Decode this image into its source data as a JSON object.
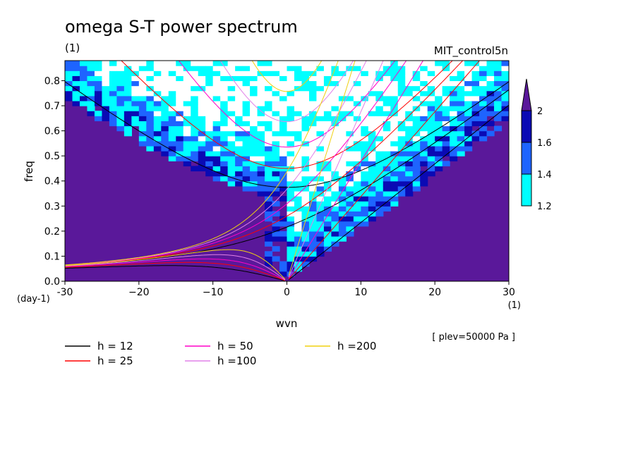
{
  "title": "omega S-T power spectrum",
  "unit_label": "(1)",
  "run_name": "MIT_control5n",
  "level_note": "[ plev=50000 Pa ]",
  "chart_data": {
    "type": "heatmap",
    "title": "omega S-T power spectrum",
    "xlabel": "wvn",
    "ylabel": "freq",
    "x_unit": "(1)",
    "y_unit": "(day-1)",
    "xlim": [
      -30,
      30
    ],
    "ylim": [
      0,
      0.88
    ],
    "x_ticks": [
      -30,
      -20,
      -10,
      0,
      10,
      20,
      30
    ],
    "x_tick_labels": [
      "-30",
      "−20",
      "−10",
      "0",
      "10",
      "20",
      "30"
    ],
    "y_ticks": [
      0.0,
      0.1,
      0.2,
      0.3,
      0.4,
      0.5,
      0.6,
      0.7,
      0.8
    ],
    "y_tick_labels": [
      "0.0",
      "0.1",
      "0.2",
      "0.3",
      "0.4",
      "0.5",
      "0.6",
      "0.7",
      "0.8"
    ],
    "colorbar": {
      "levels": [
        1.2,
        1.4,
        1.6,
        2
      ],
      "labels": [
        "1.2",
        "1.4",
        "1.6",
        "2"
      ],
      "colors": [
        "#00ffff",
        "#1e64ff",
        "#0a0ab4",
        "#5a189a"
      ],
      "below_color": "#ffffff",
      "above_color": "#5a189a"
    },
    "background_level_color": "#5a189a",
    "dispersion_curves": [
      {
        "name": "h = 12",
        "h": 12,
        "color": "#000000"
      },
      {
        "name": "h = 25",
        "h": 25,
        "color": "#ff0000"
      },
      {
        "name": "h = 50",
        "h": 50,
        "color": "#ff00c8"
      },
      {
        "name": "h =100",
        "h": 100,
        "color": "#e080e8"
      },
      {
        "name": "h =200",
        "h": 200,
        "color": "#f0d010"
      }
    ]
  }
}
